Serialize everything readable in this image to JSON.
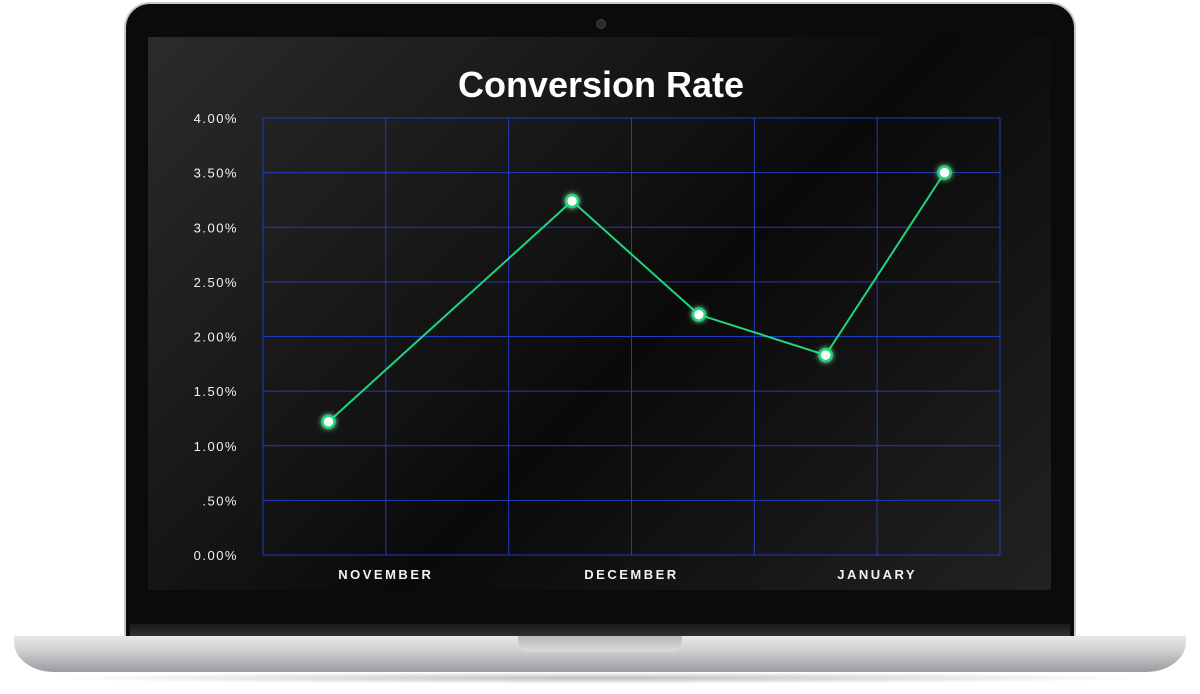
{
  "chart_data": {
    "type": "line",
    "title": "Conversion Rate",
    "xlabel": "",
    "ylabel": "",
    "categories": [
      "NOVEMBER",
      "DECEMBER",
      "JANUARY"
    ],
    "y_ticks": [
      "0.00%",
      ".50%",
      "1.00%",
      "1.50%",
      "2.00%",
      "2.50%",
      "3.00%",
      "3.50%",
      "4.00%"
    ],
    "ylim": [
      0,
      4.0
    ],
    "grid": true,
    "legend": "none",
    "series": [
      {
        "points": [
          {
            "x": "Nov 8",
            "y": 1.22
          },
          {
            "x": "Dec 8",
            "y": 3.24
          },
          {
            "x": "Dec 24",
            "y": 2.2
          },
          {
            "x": "Jan 9",
            "y": 1.83
          },
          {
            "x": "Jan 24",
            "y": 3.5
          }
        ]
      }
    ],
    "colors": {
      "line": "#1fd67a",
      "grid": "#1f3bbf",
      "marker_fill": "#ffffff",
      "text": "#f2f2f2"
    }
  }
}
